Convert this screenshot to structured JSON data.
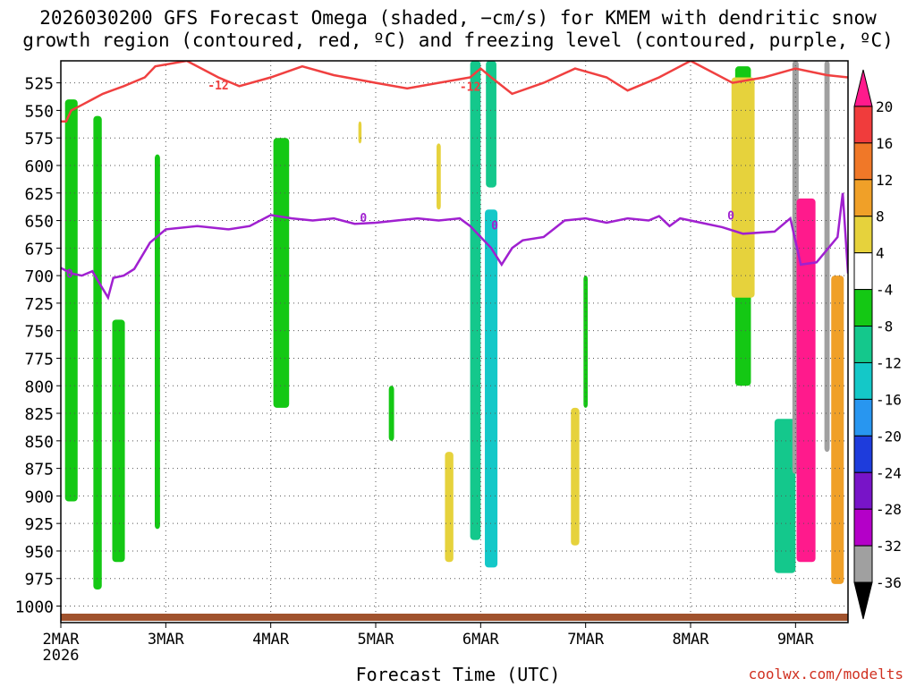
{
  "chart_data": {
    "type": "heatmap",
    "title_line1": "2026030200 GFS Forecast Omega (shaded, −cm/s) for KMEM with dendritic snow",
    "title_line2": "growth region (contoured, red, ºC) and freezing level (contoured, purple, ºC)",
    "xlabel": "Forecast Time (UTC)",
    "credit": "coolwx.com/modelts",
    "x_ticks": [
      "2MAR",
      "3MAR",
      "4MAR",
      "5MAR",
      "6MAR",
      "7MAR",
      "8MAR",
      "9MAR"
    ],
    "x_year": "2026",
    "x_range_days": [
      0,
      7.5
    ],
    "y_ticks": [
      "525",
      "550",
      "575",
      "600",
      "625",
      "650",
      "675",
      "700",
      "725",
      "750",
      "775",
      "800",
      "825",
      "850",
      "875",
      "900",
      "925",
      "950",
      "975",
      "1000"
    ],
    "y_range_hpa": [
      505,
      1015
    ],
    "colorbar": {
      "labels": [
        "20",
        "16",
        "12",
        "8",
        "4",
        "-4",
        "-8",
        "-12",
        "-16",
        "-20",
        "-24",
        "-28",
        "-32",
        "-36"
      ],
      "levels": [
        20,
        16,
        12,
        8,
        4,
        -4,
        -8,
        -12,
        -16,
        -20,
        -24,
        -28,
        -32,
        -36
      ],
      "colors": [
        "#ff1a8c",
        "#f03c3c",
        "#f07828",
        "#f0a028",
        "#e6d23c",
        "#ffffff",
        "#14c814",
        "#14c88c",
        "#14c8c8",
        "#2896f0",
        "#1e3cdc",
        "#7814c8",
        "#b400c8",
        "#a0a0a0",
        "#000000"
      ]
    },
    "red_contour": {
      "label": "-12",
      "points": [
        [
          0.0,
          560
        ],
        [
          0.05,
          560
        ],
        [
          0.1,
          550
        ],
        [
          0.2,
          545
        ],
        [
          0.3,
          540
        ],
        [
          0.4,
          535
        ],
        [
          0.6,
          528
        ],
        [
          0.8,
          520
        ],
        [
          0.9,
          510
        ],
        [
          1.2,
          505
        ],
        [
          1.5,
          520
        ],
        [
          1.7,
          528
        ],
        [
          2.0,
          520
        ],
        [
          2.3,
          510
        ],
        [
          2.6,
          518
        ],
        [
          3.0,
          525
        ],
        [
          3.3,
          530
        ],
        [
          3.6,
          525
        ],
        [
          3.9,
          520
        ],
        [
          4.0,
          512
        ],
        [
          4.1,
          520
        ],
        [
          4.3,
          535
        ],
        [
          4.6,
          525
        ],
        [
          4.9,
          512
        ],
        [
          5.2,
          520
        ],
        [
          5.4,
          532
        ],
        [
          5.7,
          520
        ],
        [
          6.0,
          505
        ],
        [
          6.4,
          525
        ],
        [
          6.7,
          520
        ],
        [
          7.0,
          512
        ],
        [
          7.3,
          518
        ],
        [
          7.5,
          520
        ]
      ],
      "labels_at": [
        [
          1.4,
          527
        ],
        [
          3.8,
          528
        ]
      ]
    },
    "purple_contour": {
      "label": "0",
      "points": [
        [
          0.0,
          693
        ],
        [
          0.1,
          698
        ],
        [
          0.2,
          700
        ],
        [
          0.3,
          696
        ],
        [
          0.4,
          712
        ],
        [
          0.45,
          720
        ],
        [
          0.5,
          702
        ],
        [
          0.6,
          700
        ],
        [
          0.7,
          694
        ],
        [
          0.85,
          670
        ],
        [
          1.0,
          658
        ],
        [
          1.3,
          655
        ],
        [
          1.6,
          658
        ],
        [
          1.8,
          655
        ],
        [
          2.0,
          645
        ],
        [
          2.2,
          648
        ],
        [
          2.4,
          650
        ],
        [
          2.6,
          648
        ],
        [
          2.8,
          653
        ],
        [
          3.0,
          652
        ],
        [
          3.2,
          650
        ],
        [
          3.4,
          648
        ],
        [
          3.6,
          650
        ],
        [
          3.8,
          648
        ],
        [
          3.9,
          655
        ],
        [
          4.1,
          675
        ],
        [
          4.2,
          690
        ],
        [
          4.3,
          675
        ],
        [
          4.4,
          668
        ],
        [
          4.6,
          665
        ],
        [
          4.8,
          650
        ],
        [
          5.0,
          648
        ],
        [
          5.2,
          652
        ],
        [
          5.4,
          648
        ],
        [
          5.6,
          650
        ],
        [
          5.7,
          646
        ],
        [
          5.8,
          655
        ],
        [
          5.9,
          648
        ],
        [
          6.1,
          652
        ],
        [
          6.3,
          656
        ],
        [
          6.5,
          662
        ],
        [
          6.8,
          660
        ],
        [
          6.95,
          648
        ],
        [
          7.05,
          690
        ],
        [
          7.2,
          688
        ],
        [
          7.4,
          665
        ],
        [
          7.45,
          625
        ],
        [
          7.5,
          698
        ]
      ],
      "labels_at": [
        [
          0.05,
          698
        ],
        [
          2.85,
          647
        ],
        [
          4.1,
          654
        ],
        [
          6.35,
          645
        ]
      ]
    },
    "omega_features": [
      {
        "day": 0.1,
        "p_top": 540,
        "p_bot": 905,
        "w": 0.12,
        "value": -8
      },
      {
        "day": 0.35,
        "p_top": 555,
        "p_bot": 985,
        "w": 0.08,
        "value": -8
      },
      {
        "day": 0.55,
        "p_top": 740,
        "p_bot": 960,
        "w": 0.12,
        "value": -8
      },
      {
        "day": 0.92,
        "p_top": 590,
        "p_bot": 930,
        "w": 0.05,
        "value": -8
      },
      {
        "day": 2.1,
        "p_top": 575,
        "p_bot": 820,
        "w": 0.15,
        "value": -8
      },
      {
        "day": 2.85,
        "p_top": 560,
        "p_bot": 580,
        "w": 0.03,
        "value": 4
      },
      {
        "day": 3.15,
        "p_top": 800,
        "p_bot": 850,
        "w": 0.05,
        "value": -8
      },
      {
        "day": 3.6,
        "p_top": 580,
        "p_bot": 640,
        "w": 0.04,
        "value": 4
      },
      {
        "day": 3.7,
        "p_top": 860,
        "p_bot": 960,
        "w": 0.08,
        "value": 4
      },
      {
        "day": 3.95,
        "p_top": 505,
        "p_bot": 940,
        "w": 0.1,
        "value": -10
      },
      {
        "day": 4.1,
        "p_top": 505,
        "p_bot": 620,
        "w": 0.1,
        "value": -10
      },
      {
        "day": 4.1,
        "p_top": 640,
        "p_bot": 965,
        "w": 0.12,
        "value": -14
      },
      {
        "day": 4.9,
        "p_top": 820,
        "p_bot": 945,
        "w": 0.08,
        "value": 4
      },
      {
        "day": 5.0,
        "p_top": 700,
        "p_bot": 820,
        "w": 0.04,
        "value": -8
      },
      {
        "day": 6.5,
        "p_top": 510,
        "p_bot": 800,
        "w": 0.15,
        "value": -8
      },
      {
        "day": 6.5,
        "p_top": 520,
        "p_bot": 720,
        "w": 0.22,
        "value": 4
      },
      {
        "day": 6.9,
        "p_top": 830,
        "p_bot": 970,
        "w": 0.2,
        "value": -10
      },
      {
        "day": 7.0,
        "p_top": 505,
        "p_bot": 880,
        "w": 0.06,
        "value": -36
      },
      {
        "day": 7.1,
        "p_top": 630,
        "p_bot": 960,
        "w": 0.18,
        "value": 20
      },
      {
        "day": 7.3,
        "p_top": 505,
        "p_bot": 860,
        "w": 0.05,
        "value": -36
      },
      {
        "day": 7.4,
        "p_top": 700,
        "p_bot": 980,
        "w": 0.12,
        "value": 8
      }
    ]
  }
}
